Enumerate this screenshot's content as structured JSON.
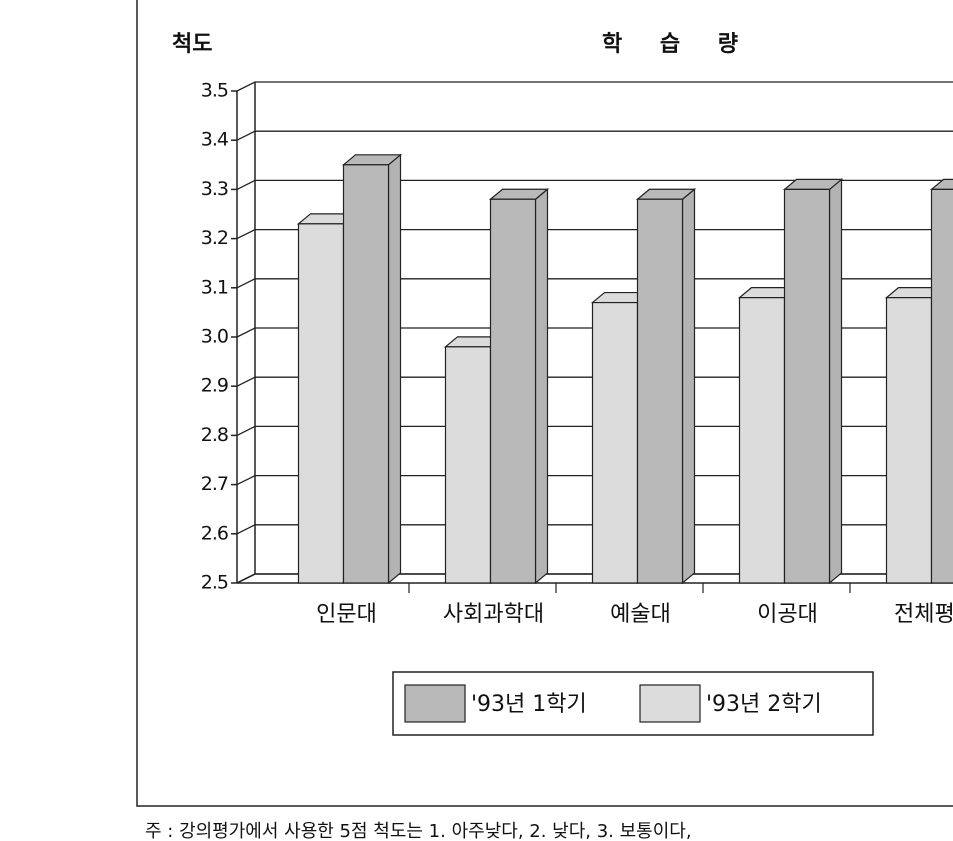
{
  "chart_data": {
    "type": "bar3d",
    "title": "학 습 량",
    "y_label": "척도",
    "categories": [
      "인문대",
      "사회과학대",
      "예술대",
      "이공대",
      "전체평균"
    ],
    "series": [
      {
        "name": "'93년 1학기",
        "color": "#b9b9b9",
        "values": [
          3.35,
          3.28,
          3.28,
          3.3,
          3.3
        ]
      },
      {
        "name": "'93년 2학기",
        "color": "#dcdcdc",
        "values": [
          3.23,
          2.98,
          3.07,
          3.08,
          3.08
        ]
      }
    ],
    "ylim": [
      2.5,
      3.5
    ],
    "yticks": [
      2.5,
      2.6,
      2.7,
      2.8,
      2.9,
      {
        "value": 3,
        "label": "3.0"
      },
      3.1,
      3.2,
      3.3,
      3.4,
      3.5
    ],
    "grid": true,
    "legend": "bottom",
    "note": "주 : 강의평가에서 사용한 5점 척도는 1. 아주낮다, 2. 낮다, 3. 보통이다,"
  }
}
